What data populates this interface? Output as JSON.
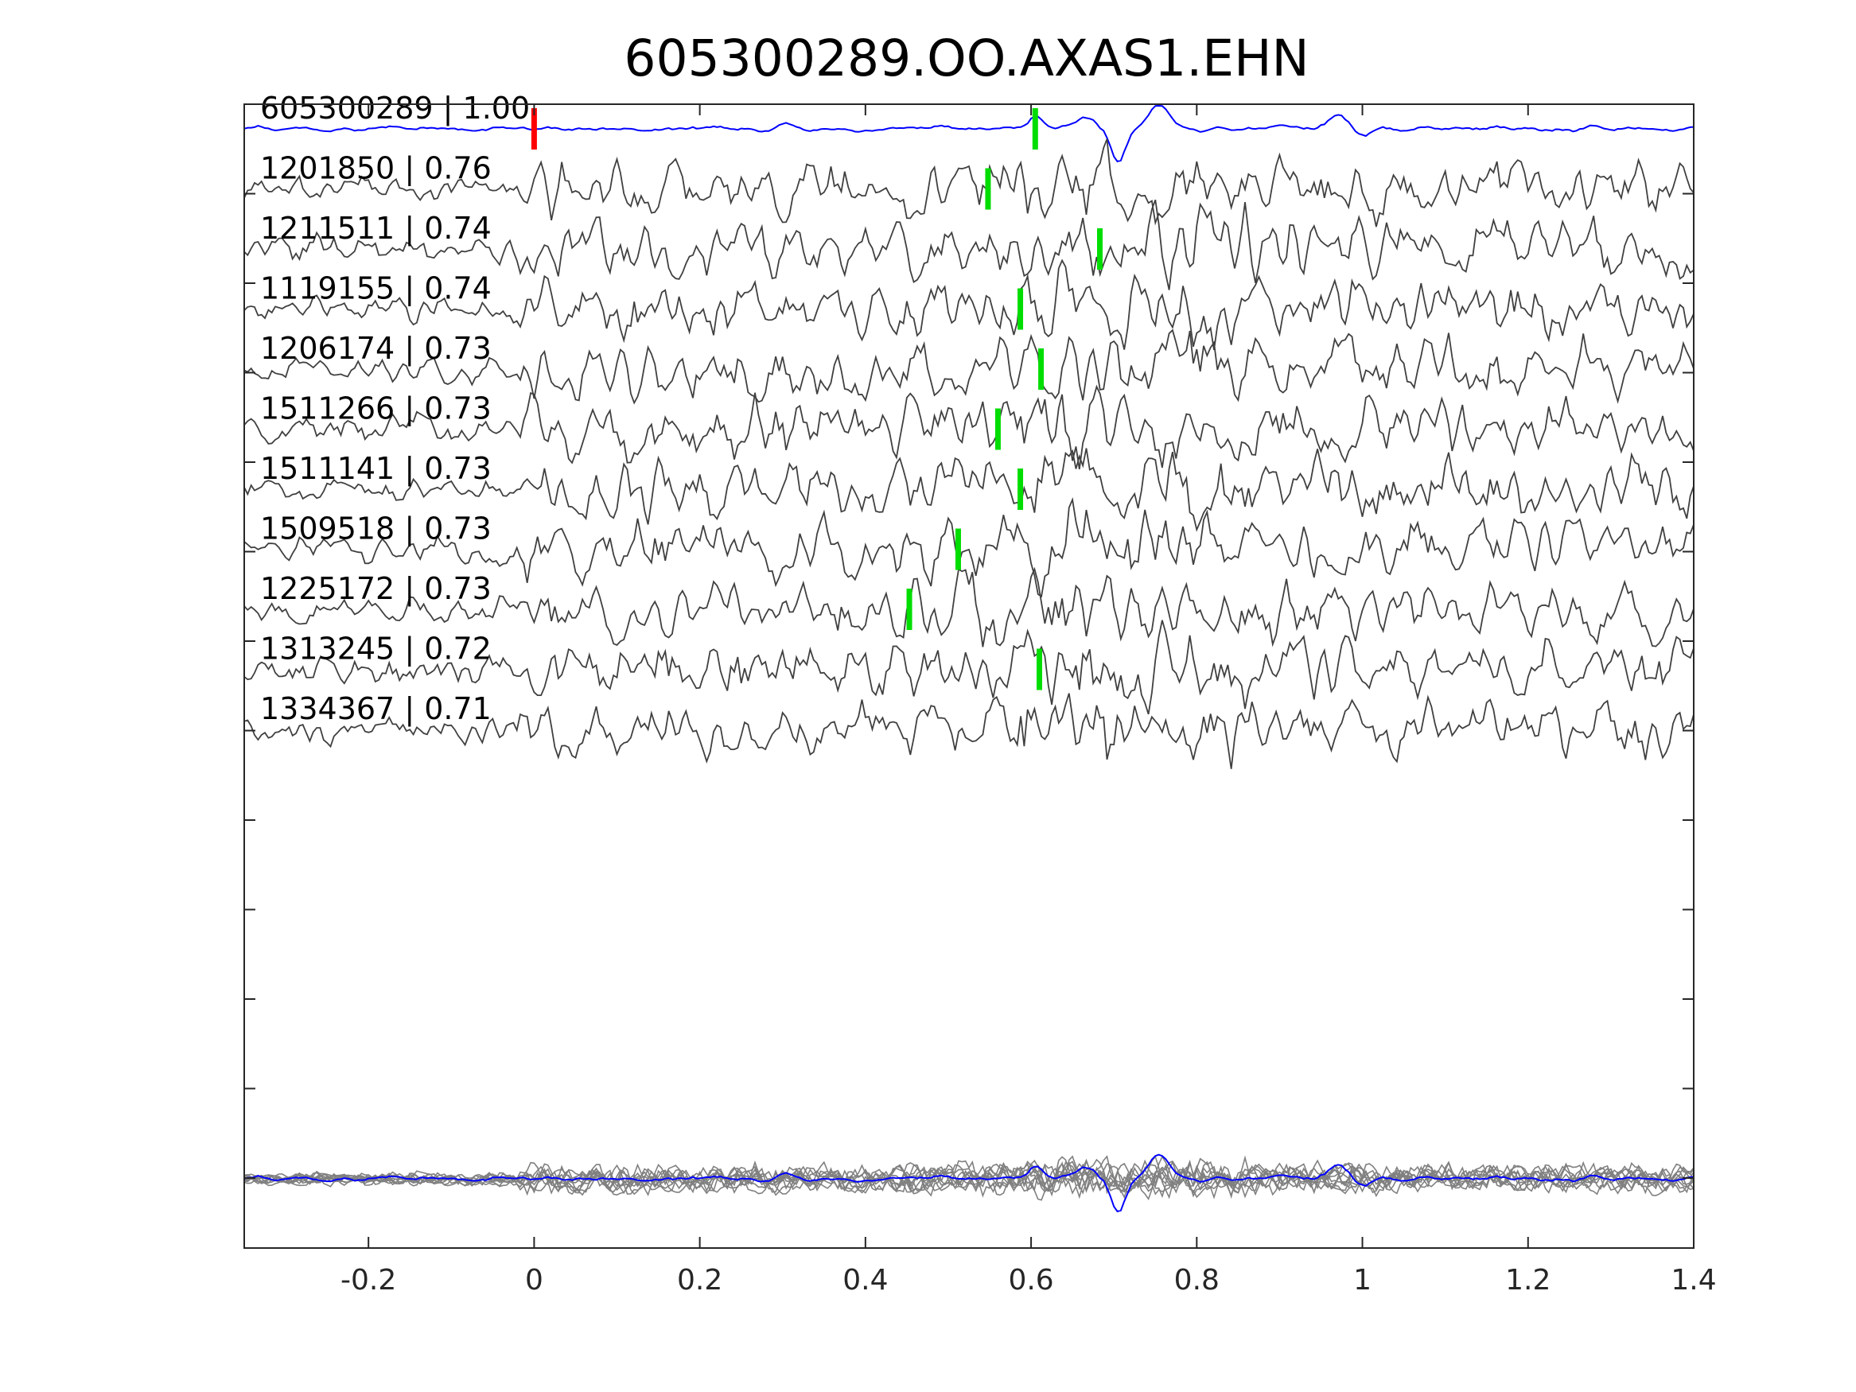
{
  "chart_data": {
    "type": "line",
    "title": "605300289.OO.AXAS1.EHN",
    "xlabel": "",
    "ylabel": "",
    "xlim": [
      -0.35,
      1.4
    ],
    "x_ticks": [
      {
        "value": -0.2,
        "label": "-0.2"
      },
      {
        "value": 0,
        "label": "0"
      },
      {
        "value": 0.2,
        "label": "0.2"
      },
      {
        "value": 0.4,
        "label": "0.4"
      },
      {
        "value": 0.6,
        "label": "0.6"
      },
      {
        "value": 0.8,
        "label": "0.8"
      },
      {
        "value": 1,
        "label": "1"
      },
      {
        "value": 1.2,
        "label": "1.2"
      },
      {
        "value": 1.4,
        "label": "1.4"
      }
    ],
    "grid": false,
    "colors": {
      "template": "#0000ff",
      "trace": "#404040",
      "stack": "#808080",
      "origin_pick": "#ff0000",
      "pick": "#00dd00"
    },
    "origin_pick_time": 0,
    "traces": [
      {
        "label": "605300289 | 1.00",
        "pick": 0.605,
        "template": true
      },
      {
        "label": "1201850 | 0.76",
        "pick": 0.548
      },
      {
        "label": "1211511 | 0.74",
        "pick": 0.683
      },
      {
        "label": "1119155 | 0.74",
        "pick": 0.587
      },
      {
        "label": "1206174 | 0.73",
        "pick": 0.612
      },
      {
        "label": "1511266 | 0.73",
        "pick": 0.56
      },
      {
        "label": "1511141 | 0.73",
        "pick": 0.587
      },
      {
        "label": "1509518 | 0.73",
        "pick": 0.512
      },
      {
        "label": "1225172 | 0.73",
        "pick": 0.453
      },
      {
        "label": "1313245 | 0.72",
        "pick": 0.61
      },
      {
        "label": "1334367 | 0.71",
        "pick": null
      }
    ]
  }
}
